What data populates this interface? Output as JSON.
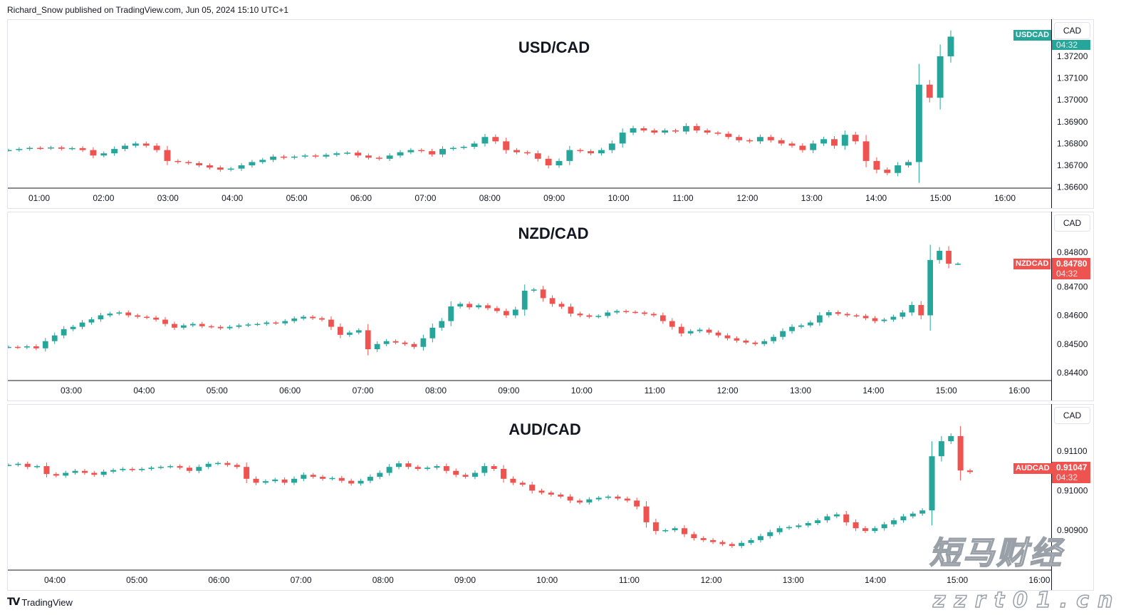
{
  "header": {
    "published": "Richard_Snow published on TradingView.com, Jun 05, 2024 15:10 UTC+1"
  },
  "footer": {
    "brand": "TradingView",
    "logo": "TV"
  },
  "watermark": {
    "cn": "短马财经",
    "url": "zzrt01.cn"
  },
  "colors": {
    "up": "#26a69a",
    "down": "#ef5350",
    "axis": "#131722",
    "border": "#e0e3eb"
  },
  "chart_data": [
    {
      "type": "candlestick",
      "title": "USD/CAD",
      "symbol": "USDCAD",
      "currency": "CAD",
      "countdown": "04:32",
      "last_price": "",
      "tag_color": "#26a69a",
      "x_ticks": [
        "01:00",
        "02:00",
        "03:00",
        "04:00",
        "05:00",
        "06:00",
        "07:00",
        "08:00",
        "09:00",
        "10:00",
        "11:00",
        "12:00",
        "13:00",
        "14:00",
        "15:00",
        "16:00"
      ],
      "y_ticks": [
        "1.37200",
        "1.37100",
        "1.37000",
        "1.36900",
        "1.36800",
        "1.36700",
        "1.36600"
      ],
      "closes": [
        1.3677,
        1.36775,
        1.3678,
        1.36778,
        1.36782,
        1.36776,
        1.36779,
        1.3677,
        1.36745,
        1.36755,
        1.36775,
        1.3679,
        1.368,
        1.3679,
        1.3677,
        1.3672,
        1.36715,
        1.3671,
        1.367,
        1.3669,
        1.3668,
        1.36685,
        1.367,
        1.36715,
        1.36725,
        1.3674,
        1.36735,
        1.3674,
        1.36745,
        1.3674,
        1.36748,
        1.36755,
        1.36758,
        1.36745,
        1.36735,
        1.3673,
        1.36745,
        1.3676,
        1.3677,
        1.36765,
        1.3675,
        1.36775,
        1.3678,
        1.36785,
        1.368,
        1.3683,
        1.3681,
        1.3677,
        1.3676,
        1.36755,
        1.3673,
        1.367,
        1.3672,
        1.3677,
        1.36765,
        1.36755,
        1.3677,
        1.368,
        1.3685,
        1.3687,
        1.3686,
        1.3685,
        1.3686,
        1.36855,
        1.3688,
        1.3686,
        1.3685,
        1.36845,
        1.3683,
        1.36815,
        1.3681,
        1.3683,
        1.36815,
        1.368,
        1.3679,
        1.3677,
        1.368,
        1.3682,
        1.3679,
        1.3684,
        1.3681,
        1.3672,
        1.3668,
        1.36665,
        1.367,
        1.36715,
        1.3707,
        1.3701,
        1.372,
        1.3729
      ]
    },
    {
      "type": "candlestick",
      "title": "NZD/CAD",
      "symbol": "NZDCAD",
      "currency": "CAD",
      "countdown": "04:32",
      "last_price": "0.84780",
      "tag_color": "#ef5350",
      "x_ticks": [
        "03:00",
        "04:00",
        "05:00",
        "06:00",
        "07:00",
        "08:00",
        "09:00",
        "10:00",
        "11:00",
        "12:00",
        "13:00",
        "14:00",
        "15:00",
        "16:00"
      ],
      "y_ticks": [
        "0.84800",
        "0.84700",
        "0.84600",
        "0.84500",
        "0.84400"
      ],
      "closes": [
        0.8449,
        0.84488,
        0.84492,
        0.84485,
        0.8451,
        0.8453,
        0.84552,
        0.8456,
        0.84575,
        0.84586,
        0.846,
        0.84606,
        0.8461,
        0.846,
        0.84595,
        0.84592,
        0.84585,
        0.8457,
        0.84557,
        0.84565,
        0.8457,
        0.84562,
        0.8456,
        0.84555,
        0.8456,
        0.84565,
        0.84568,
        0.8457,
        0.84575,
        0.84572,
        0.8458,
        0.84589,
        0.84595,
        0.8459,
        0.84585,
        0.8456,
        0.84532,
        0.8454,
        0.84548,
        0.84482,
        0.845,
        0.8451,
        0.84505,
        0.845,
        0.8449,
        0.8452,
        0.84557,
        0.8458,
        0.84631,
        0.8464,
        0.84628,
        0.84635,
        0.84625,
        0.84615,
        0.846,
        0.8462,
        0.84686,
        0.8469,
        0.8466,
        0.8464,
        0.8463,
        0.84606,
        0.846,
        0.84595,
        0.84598,
        0.8461,
        0.84615,
        0.84612,
        0.8461,
        0.84605,
        0.846,
        0.8458,
        0.8456,
        0.84537,
        0.84545,
        0.8455,
        0.8454,
        0.8453,
        0.8452,
        0.84512,
        0.84505,
        0.845,
        0.8451,
        0.84525,
        0.84545,
        0.8456,
        0.84565,
        0.84575,
        0.846,
        0.84611,
        0.84605,
        0.846,
        0.84598,
        0.8459,
        0.8458,
        0.84585,
        0.84595,
        0.8461,
        0.84636,
        0.846,
        0.84793,
        0.84825,
        0.8478,
        0.8478
      ]
    },
    {
      "type": "candlestick",
      "title": "AUD/CAD",
      "symbol": "AUDCAD",
      "currency": "CAD",
      "countdown": "04:32",
      "last_price": "0.91047",
      "tag_color": "#ef5350",
      "x_ticks": [
        "04:00",
        "05:00",
        "06:00",
        "07:00",
        "08:00",
        "09:00",
        "10:00",
        "11:00",
        "12:00",
        "13:00",
        "14:00",
        "15:00",
        "16:00"
      ],
      "y_ticks": [
        "0.91100",
        "0.91000",
        "0.90900"
      ],
      "closes": [
        0.91065,
        0.91068,
        0.9106,
        0.91062,
        0.91042,
        0.91038,
        0.91045,
        0.9105,
        0.91045,
        0.9104,
        0.91048,
        0.91052,
        0.91055,
        0.91052,
        0.91055,
        0.91058,
        0.9106,
        0.91062,
        0.91058,
        0.9105,
        0.9106,
        0.91068,
        0.9107,
        0.91065,
        0.9106,
        0.9103,
        0.9102,
        0.91024,
        0.91028,
        0.9102,
        0.9103,
        0.9104,
        0.91035,
        0.9103,
        0.91032,
        0.91025,
        0.91018,
        0.91025,
        0.91035,
        0.91045,
        0.9106,
        0.91069,
        0.9106,
        0.91055,
        0.91058,
        0.91062,
        0.9105,
        0.9104,
        0.91035,
        0.91045,
        0.91062,
        0.91055,
        0.9103,
        0.9102,
        0.91015,
        0.91,
        0.90995,
        0.9099,
        0.90985,
        0.90975,
        0.9097,
        0.90978,
        0.90982,
        0.90985,
        0.9098,
        0.90975,
        0.9096,
        0.9092,
        0.90898,
        0.909,
        0.90905,
        0.9089,
        0.9088,
        0.90875,
        0.9087,
        0.90865,
        0.9086,
        0.90868,
        0.90875,
        0.90885,
        0.90895,
        0.90905,
        0.90908,
        0.90912,
        0.90918,
        0.90925,
        0.90935,
        0.9094,
        0.9092,
        0.90905,
        0.90898,
        0.90905,
        0.90915,
        0.90925,
        0.90935,
        0.90942,
        0.9095,
        0.91087,
        0.91125,
        0.91138,
        0.91051,
        0.91047
      ]
    }
  ]
}
